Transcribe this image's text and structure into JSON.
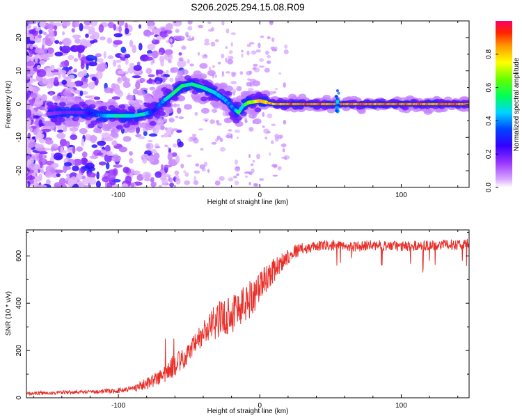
{
  "page_title": "S206.2025.294.15.08.R09",
  "chart_data": [
    {
      "type": "heatmap",
      "title": "S206.2025.294.15.08.R09",
      "xlabel": "Height of straight line (km)",
      "ylabel": "Frequency (Hz)",
      "xlim": [
        -165,
        148
      ],
      "ylim": [
        -25,
        25
      ],
      "xticks": [
        -100,
        0,
        100
      ],
      "yticks": [
        -20,
        -10,
        0,
        10,
        20
      ],
      "colorbar": {
        "label": "Normalized spectral amplitude",
        "range": [
          0,
          1
        ],
        "ticks": [
          0.0,
          0.2,
          0.4,
          0.6,
          0.8
        ],
        "colors": [
          "#ffffff",
          "#cc66ff",
          "#7a00ff",
          "#0000ff",
          "#00e5ff",
          "#00ff00",
          "#ffff00",
          "#ff8800",
          "#ff0000",
          "#ff0066"
        ]
      },
      "ridge_path": {
        "x": [
          -150,
          -140,
          -125,
          -110,
          -100,
          -90,
          -82,
          -75,
          -68,
          -62,
          -55,
          -48,
          -40,
          -32,
          -25,
          -18,
          -15,
          -12,
          -8,
          0,
          10,
          20,
          40,
          60,
          80,
          100,
          120,
          140,
          148
        ],
        "frequency": [
          -3,
          -2.5,
          -2.5,
          -3.5,
          -3.5,
          -3.5,
          -3,
          -2,
          1,
          3,
          5.5,
          6,
          5,
          3.5,
          1.5,
          -1.5,
          -2.5,
          -0.5,
          0.5,
          1,
          0,
          0,
          0,
          0,
          0,
          0,
          0,
          0,
          0
        ],
        "amplitude": [
          0.15,
          0.2,
          0.2,
          0.45,
          0.55,
          0.5,
          0.55,
          0.3,
          0.45,
          0.6,
          0.6,
          0.55,
          0.55,
          0.5,
          0.45,
          0.4,
          0.6,
          0.5,
          0.7,
          0.85,
          0.9,
          0.95,
          0.95,
          0.95,
          0.95,
          0.95,
          0.95,
          0.95,
          0.95
        ]
      }
    },
    {
      "type": "line",
      "xlabel": "Height of straight line (km)",
      "ylabel": "SNR (10 * v/v)",
      "xlim": [
        -165,
        148
      ],
      "ylim": [
        0,
        710
      ],
      "xticks": [
        -100,
        0,
        100
      ],
      "yticks": [
        0,
        200,
        400,
        600
      ],
      "color": "#e8302a",
      "series": [
        {
          "name": "SNR",
          "x": [
            -165,
            -140,
            -120,
            -100,
            -90,
            -80,
            -70,
            -65,
            -60,
            -55,
            -50,
            -45,
            -40,
            -35,
            -30,
            -25,
            -20,
            -15,
            -10,
            -5,
            0,
            5,
            10,
            15,
            20,
            25,
            30,
            35,
            40,
            50,
            60,
            70,
            80,
            100,
            120,
            148
          ],
          "y": [
            18,
            22,
            25,
            30,
            40,
            60,
            90,
            110,
            140,
            160,
            190,
            230,
            270,
            300,
            330,
            340,
            360,
            380,
            400,
            430,
            470,
            510,
            540,
            570,
            600,
            620,
            630,
            635,
            640,
            645,
            640,
            640,
            645,
            640,
            645,
            650
          ],
          "noise": [
            8,
            8,
            8,
            10,
            15,
            25,
            35,
            45,
            50,
            45,
            40,
            50,
            60,
            70,
            75,
            80,
            90,
            90,
            85,
            80,
            70,
            60,
            50,
            40,
            35,
            30,
            25,
            22,
            22,
            22,
            22,
            22,
            22,
            22,
            22,
            22
          ]
        }
      ]
    }
  ]
}
